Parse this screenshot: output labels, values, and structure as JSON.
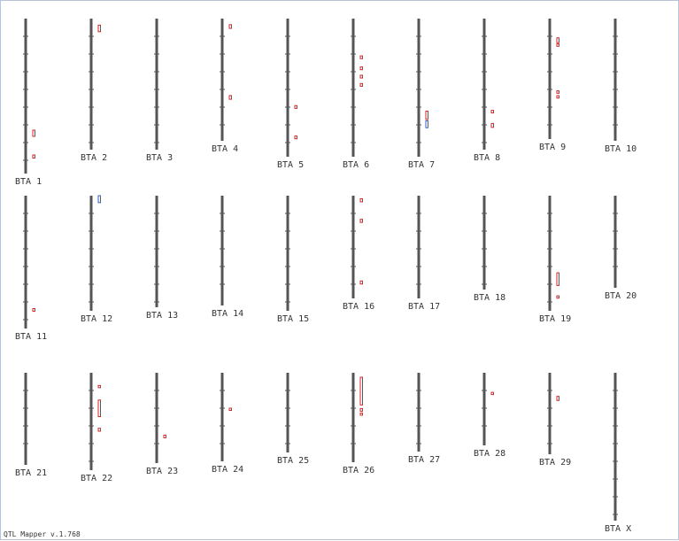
{
  "app": {
    "version_label": "QTL Mapper v.1.768"
  },
  "colors": {
    "chromosome": "#555555",
    "tick": "#555555",
    "qtl_red": "#e02020",
    "qtl_blue": "#3060d0",
    "label": "#333333",
    "frame": "#b8c4d4"
  },
  "chromosomes": [
    {
      "label": "BTA 1",
      "qtls": [
        {
          "color": "red",
          "y0": 0.72,
          "y1": 0.76
        },
        {
          "color": "red",
          "y0": 0.88,
          "y1": 0.9
        }
      ]
    },
    {
      "label": "BTA 2",
      "qtls": [
        {
          "color": "red",
          "y0": 0.05,
          "y1": 0.1
        }
      ]
    },
    {
      "label": "BTA 3",
      "qtls": []
    },
    {
      "label": "BTA 4",
      "qtls": [
        {
          "color": "red",
          "y0": 0.05,
          "y1": 0.08
        },
        {
          "color": "red",
          "y0": 0.63,
          "y1": 0.66
        }
      ]
    },
    {
      "label": "BTA 5",
      "qtls": [
        {
          "color": "red",
          "y0": 0.63,
          "y1": 0.65
        },
        {
          "color": "red",
          "y0": 0.85,
          "y1": 0.87
        }
      ]
    },
    {
      "label": "BTA 6",
      "qtls": [
        {
          "color": "red",
          "y0": 0.27,
          "y1": 0.29
        },
        {
          "color": "red",
          "y0": 0.35,
          "y1": 0.37
        },
        {
          "color": "red",
          "y0": 0.41,
          "y1": 0.43
        },
        {
          "color": "red",
          "y0": 0.47,
          "y1": 0.49
        }
      ]
    },
    {
      "label": "BTA 7",
      "qtls": [
        {
          "color": "red",
          "y0": 0.67,
          "y1": 0.73
        },
        {
          "color": "blue",
          "y0": 0.74,
          "y1": 0.79
        }
      ]
    },
    {
      "label": "BTA 8",
      "qtls": [
        {
          "color": "red",
          "y0": 0.7,
          "y1": 0.72
        },
        {
          "color": "red",
          "y0": 0.8,
          "y1": 0.83
        }
      ]
    },
    {
      "label": "BTA 9",
      "qtls": [
        {
          "color": "red",
          "y0": 0.16,
          "y1": 0.2
        },
        {
          "color": "red",
          "y0": 0.21,
          "y1": 0.23
        },
        {
          "color": "red",
          "y0": 0.6,
          "y1": 0.62
        },
        {
          "color": "red",
          "y0": 0.64,
          "y1": 0.66
        }
      ]
    },
    {
      "label": "BTA 10",
      "qtls": []
    },
    {
      "label": "BTA 11",
      "qtls": [
        {
          "color": "red",
          "y0": 0.85,
          "y1": 0.87
        }
      ]
    },
    {
      "label": "BTA 12",
      "qtls": [
        {
          "color": "blue",
          "y0": 0.0,
          "y1": 0.06
        }
      ]
    },
    {
      "label": "BTA 13",
      "qtls": []
    },
    {
      "label": "BTA 14",
      "qtls": []
    },
    {
      "label": "BTA 15",
      "qtls": []
    },
    {
      "label": "BTA 16",
      "qtls": [
        {
          "color": "red",
          "y0": 0.03,
          "y1": 0.06
        },
        {
          "color": "red",
          "y0": 0.23,
          "y1": 0.26
        },
        {
          "color": "red",
          "y0": 0.83,
          "y1": 0.86
        }
      ]
    },
    {
      "label": "BTA 17",
      "qtls": []
    },
    {
      "label": "BTA 18",
      "qtls": []
    },
    {
      "label": "BTA 19",
      "qtls": [
        {
          "color": "red",
          "y0": 0.67,
          "y1": 0.78
        },
        {
          "color": "red",
          "y0": 0.87,
          "y1": 0.89
        }
      ]
    },
    {
      "label": "BTA 20",
      "qtls": []
    },
    {
      "label": "BTA 21",
      "qtls": []
    },
    {
      "label": "BTA 22",
      "qtls": [
        {
          "color": "red",
          "y0": 0.13,
          "y1": 0.15
        },
        {
          "color": "red",
          "y0": 0.28,
          "y1": 0.45
        },
        {
          "color": "red",
          "y0": 0.57,
          "y1": 0.6
        }
      ]
    },
    {
      "label": "BTA 23",
      "qtls": [
        {
          "color": "red",
          "y0": 0.69,
          "y1": 0.72
        }
      ]
    },
    {
      "label": "BTA 24",
      "qtls": [
        {
          "color": "red",
          "y0": 0.4,
          "y1": 0.42
        }
      ]
    },
    {
      "label": "BTA 25",
      "qtls": []
    },
    {
      "label": "BTA 26",
      "qtls": [
        {
          "color": "red",
          "y0": 0.05,
          "y1": 0.36
        },
        {
          "color": "red",
          "y0": 0.4,
          "y1": 0.43
        },
        {
          "color": "red",
          "y0": 0.45,
          "y1": 0.47
        }
      ]
    },
    {
      "label": "BTA 27",
      "qtls": []
    },
    {
      "label": "BTA 28",
      "qtls": [
        {
          "color": "red",
          "y0": 0.27,
          "y1": 0.3
        }
      ]
    },
    {
      "label": "BTA 29",
      "qtls": [
        {
          "color": "red",
          "y0": 0.29,
          "y1": 0.34
        }
      ]
    },
    {
      "label": "BTA X",
      "qtls": []
    }
  ]
}
